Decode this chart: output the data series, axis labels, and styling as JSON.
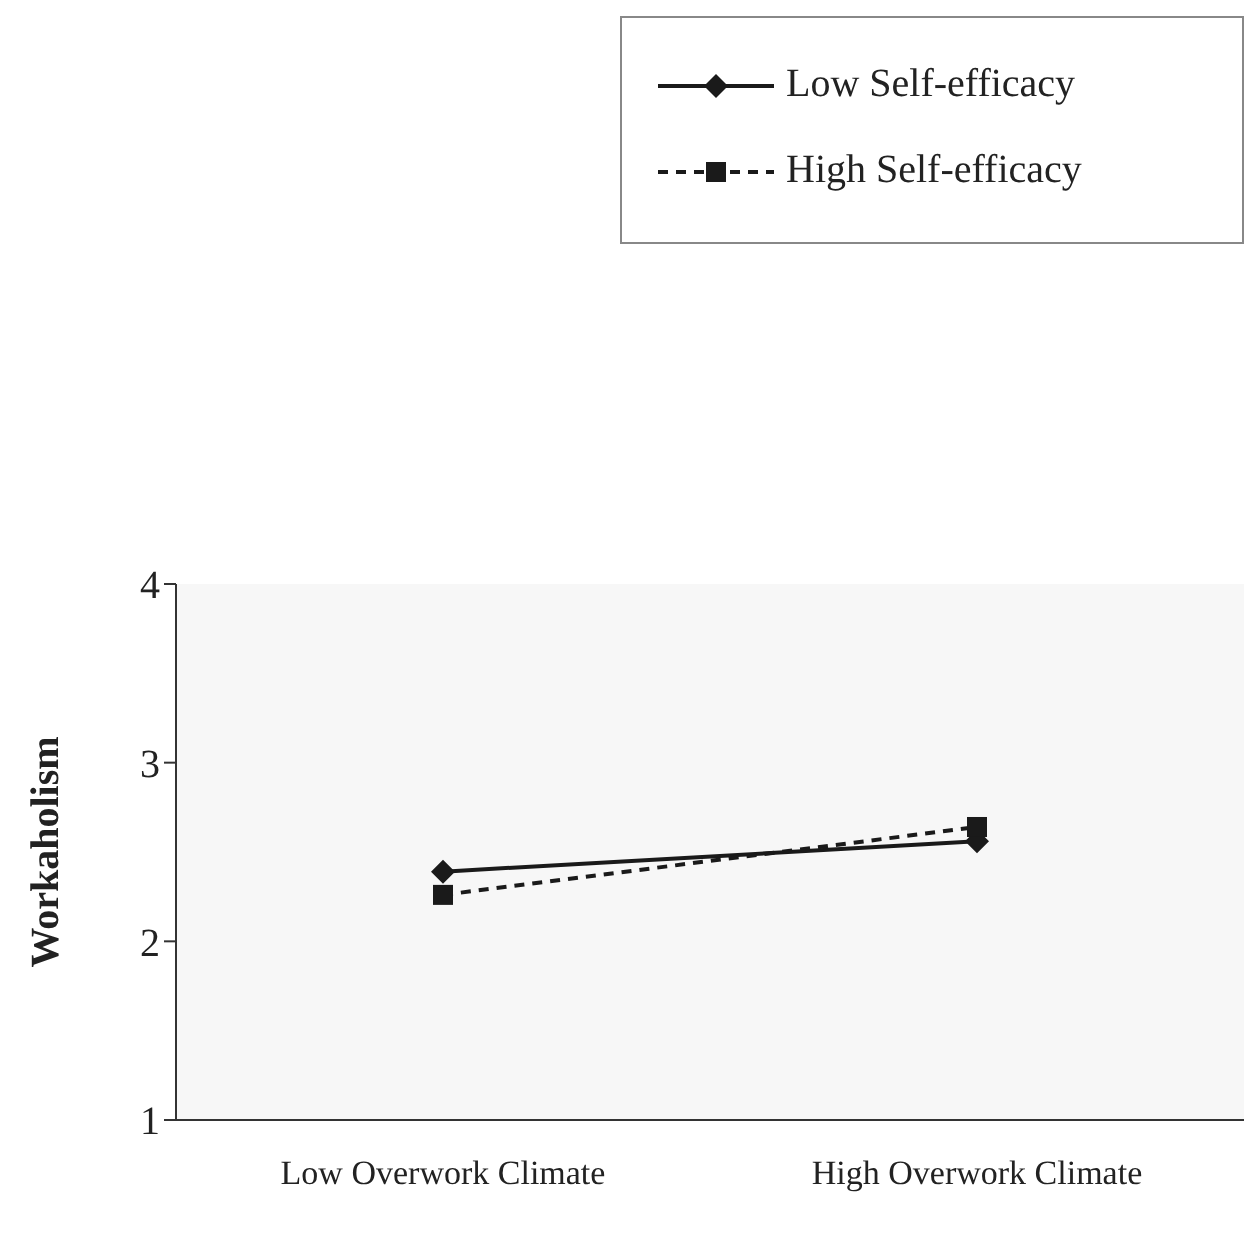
{
  "chart_data": {
    "type": "line",
    "ylabel": "Workaholism",
    "categories": [
      "Low Overwork Climate",
      "High Overwork Climate"
    ],
    "series": [
      {
        "name": "Low Self-efficacy",
        "color": "#1a1a1a",
        "values": [
          2.39,
          2.56
        ],
        "marker": "diamond",
        "line_style": "solid"
      },
      {
        "name": "High Self-efficacy",
        "color": "#1a1a1a",
        "values": [
          2.26,
          2.64
        ],
        "marker": "square",
        "line_style": "dashed"
      }
    ],
    "ylim": [
      1,
      4
    ],
    "yticks": [
      1,
      2,
      3,
      4
    ],
    "legend": "top right",
    "grid": false
  }
}
